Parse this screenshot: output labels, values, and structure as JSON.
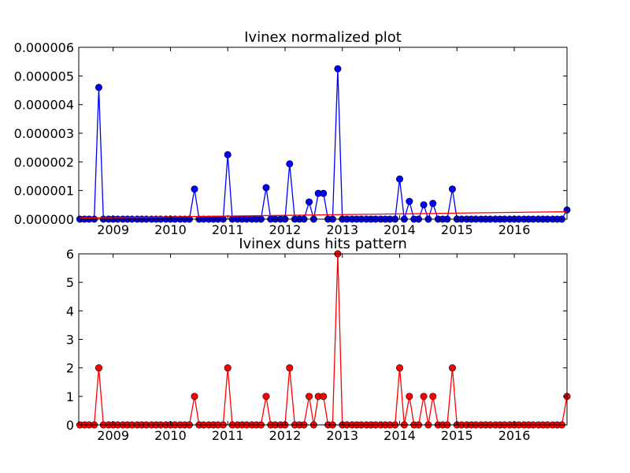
{
  "chart_data": [
    {
      "type": "line",
      "title": "Ivinex normalized plot",
      "xlabel": "",
      "ylabel": "",
      "xlim": [
        2008.4,
        2016.92
      ],
      "ylim": [
        0,
        6e-06
      ],
      "grid": false,
      "legend": "none",
      "x_ticks": [
        2009,
        2010,
        2011,
        2012,
        2013,
        2014,
        2015,
        2016
      ],
      "x_tick_labels": [
        "2009",
        "2010",
        "2011",
        "2012",
        "2013",
        "2014",
        "2015",
        "2016"
      ],
      "y_ticks": [
        0,
        1e-06,
        2e-06,
        3e-06,
        4e-06,
        5e-06,
        6e-06
      ],
      "y_tick_labels": [
        "0.000000",
        "0.000001",
        "0.000002",
        "0.000003",
        "0.000004",
        "0.000005",
        "0.000006"
      ],
      "series": [
        {
          "color": "#0000ff",
          "style": "line-with-circle-markers",
          "x": [
            2008.42,
            2008.5,
            2008.58,
            2008.67,
            2008.75,
            2008.83,
            2008.92,
            2009.0,
            2009.08,
            2009.17,
            2009.25,
            2009.33,
            2009.42,
            2009.5,
            2009.58,
            2009.67,
            2009.75,
            2009.83,
            2009.92,
            2010.0,
            2010.08,
            2010.17,
            2010.25,
            2010.33,
            2010.42,
            2010.5,
            2010.58,
            2010.67,
            2010.75,
            2010.83,
            2010.92,
            2011.0,
            2011.08,
            2011.17,
            2011.25,
            2011.33,
            2011.42,
            2011.5,
            2011.58,
            2011.67,
            2011.75,
            2011.83,
            2011.92,
            2012.0,
            2012.08,
            2012.17,
            2012.25,
            2012.33,
            2012.42,
            2012.5,
            2012.58,
            2012.67,
            2012.75,
            2012.83,
            2012.92,
            2013.0,
            2013.08,
            2013.17,
            2013.25,
            2013.33,
            2013.42,
            2013.5,
            2013.58,
            2013.67,
            2013.75,
            2013.83,
            2013.92,
            2014.0,
            2014.08,
            2014.17,
            2014.25,
            2014.33,
            2014.42,
            2014.5,
            2014.58,
            2014.67,
            2014.75,
            2014.83,
            2014.92,
            2015.0,
            2015.08,
            2015.17,
            2015.25,
            2015.33,
            2015.42,
            2015.5,
            2015.58,
            2015.67,
            2015.75,
            2015.83,
            2015.92,
            2016.0,
            2016.08,
            2016.17,
            2016.25,
            2016.33,
            2016.42,
            2016.5,
            2016.58,
            2016.67,
            2016.75,
            2016.83,
            2016.92
          ],
          "values": [
            0,
            0,
            0,
            0,
            4.6e-06,
            0,
            0,
            0,
            0,
            0,
            0,
            0,
            0,
            0,
            0,
            0,
            0,
            0,
            0,
            0,
            0,
            0,
            0,
            0,
            1.05e-06,
            0,
            0,
            0,
            0,
            0,
            0,
            2.25e-06,
            0,
            0,
            0,
            0,
            0,
            0,
            0,
            1.1e-06,
            0,
            0,
            0,
            0,
            1.93e-06,
            0,
            0,
            0,
            6e-07,
            0,
            9e-07,
            9e-07,
            0,
            0,
            5.25e-06,
            0,
            0,
            0,
            0,
            0,
            0,
            0,
            0,
            0,
            0,
            0,
            0,
            1.4e-06,
            0,
            6.2e-07,
            0,
            0,
            5e-07,
            0,
            5.5e-07,
            0,
            0,
            0,
            1.05e-06,
            0,
            0,
            0,
            0,
            0,
            0,
            0,
            0,
            0,
            0,
            0,
            0,
            0,
            0,
            0,
            0,
            0,
            0,
            0,
            0,
            0,
            0,
            0,
            3.2e-07
          ]
        },
        {
          "color": "#ff0000",
          "style": "line",
          "x": [
            2008.42,
            2016.92
          ],
          "values": [
            4e-08,
            2.6e-07
          ]
        }
      ]
    },
    {
      "type": "line",
      "title": "Ivinex duns hits pattern",
      "xlabel": "",
      "ylabel": "",
      "xlim": [
        2008.4,
        2016.92
      ],
      "ylim": [
        0,
        6
      ],
      "grid": false,
      "legend": "none",
      "x_ticks": [
        2009,
        2010,
        2011,
        2012,
        2013,
        2014,
        2015,
        2016
      ],
      "x_tick_labels": [
        "2009",
        "2010",
        "2011",
        "2012",
        "2013",
        "2014",
        "2015",
        "2016"
      ],
      "y_ticks": [
        0,
        1,
        2,
        3,
        4,
        5,
        6
      ],
      "y_tick_labels": [
        "0",
        "1",
        "2",
        "3",
        "4",
        "5",
        "6"
      ],
      "series": [
        {
          "color": "#ff0000",
          "style": "line-with-circle-markers",
          "x": [
            2008.42,
            2008.5,
            2008.58,
            2008.67,
            2008.75,
            2008.83,
            2008.92,
            2009.0,
            2009.08,
            2009.17,
            2009.25,
            2009.33,
            2009.42,
            2009.5,
            2009.58,
            2009.67,
            2009.75,
            2009.83,
            2009.92,
            2010.0,
            2010.08,
            2010.17,
            2010.25,
            2010.33,
            2010.42,
            2010.5,
            2010.58,
            2010.67,
            2010.75,
            2010.83,
            2010.92,
            2011.0,
            2011.08,
            2011.17,
            2011.25,
            2011.33,
            2011.42,
            2011.5,
            2011.58,
            2011.67,
            2011.75,
            2011.83,
            2011.92,
            2012.0,
            2012.08,
            2012.17,
            2012.25,
            2012.33,
            2012.42,
            2012.5,
            2012.58,
            2012.67,
            2012.75,
            2012.83,
            2012.92,
            2013.0,
            2013.08,
            2013.17,
            2013.25,
            2013.33,
            2013.42,
            2013.5,
            2013.58,
            2013.67,
            2013.75,
            2013.83,
            2013.92,
            2014.0,
            2014.08,
            2014.17,
            2014.25,
            2014.33,
            2014.42,
            2014.5,
            2014.58,
            2014.67,
            2014.75,
            2014.83,
            2014.92,
            2015.0,
            2015.08,
            2015.17,
            2015.25,
            2015.33,
            2015.42,
            2015.5,
            2015.58,
            2015.67,
            2015.75,
            2015.83,
            2015.92,
            2016.0,
            2016.08,
            2016.17,
            2016.25,
            2016.33,
            2016.42,
            2016.5,
            2016.58,
            2016.67,
            2016.75,
            2016.83,
            2016.92
          ],
          "values": [
            0,
            0,
            0,
            0,
            2,
            0,
            0,
            0,
            0,
            0,
            0,
            0,
            0,
            0,
            0,
            0,
            0,
            0,
            0,
            0,
            0,
            0,
            0,
            0,
            1,
            0,
            0,
            0,
            0,
            0,
            0,
            2,
            0,
            0,
            0,
            0,
            0,
            0,
            0,
            1,
            0,
            0,
            0,
            0,
            2,
            0,
            0,
            0,
            1,
            0,
            1,
            1,
            0,
            0,
            6,
            0,
            0,
            0,
            0,
            0,
            0,
            0,
            0,
            0,
            0,
            0,
            0,
            2,
            0,
            1,
            0,
            0,
            1,
            0,
            1,
            0,
            0,
            0,
            2,
            0,
            0,
            0,
            0,
            0,
            0,
            0,
            0,
            0,
            0,
            0,
            0,
            0,
            0,
            0,
            0,
            0,
            0,
            0,
            0,
            0,
            0,
            0,
            1
          ]
        }
      ]
    }
  ]
}
